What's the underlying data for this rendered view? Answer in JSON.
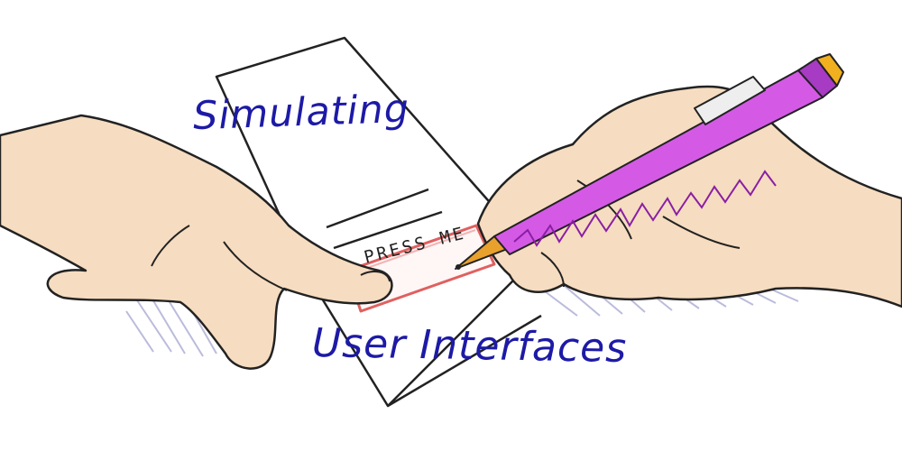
{
  "title": {
    "line1": "Simulating",
    "line2": "User Interfaces"
  },
  "paper_button": {
    "label": "PRESS ME"
  },
  "icons": [
    "pointing-hand-icon",
    "writing-hand-icon",
    "pen-icon",
    "paper-sheet-icon"
  ],
  "colors": {
    "text_ink": "#1d1aa6",
    "skin": "#f6dcc0",
    "pen_body": "#d45ae6",
    "pen_tip": "#e8a12c",
    "button_border": "#e06060",
    "shadow_scribble": "#b4b4d8",
    "outline": "#222222"
  }
}
